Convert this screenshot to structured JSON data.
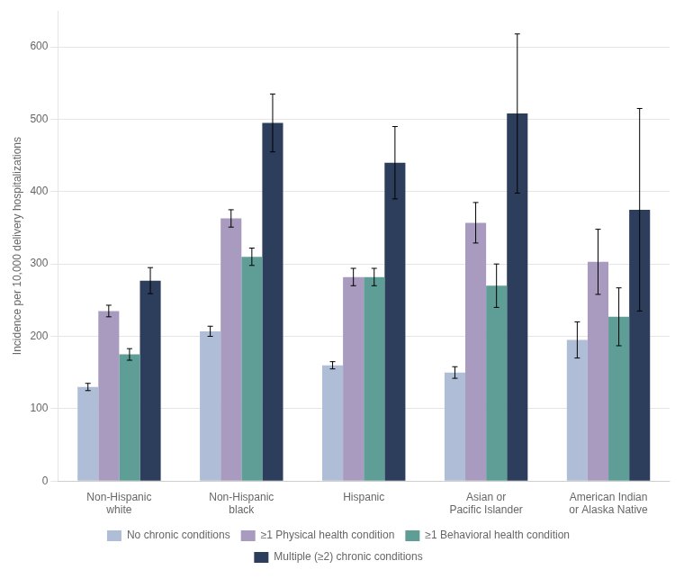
{
  "chart_data": {
    "type": "bar",
    "categories": [
      "Non-Hispanic\nwhite",
      "Non-Hispanic\nblack",
      "Hispanic",
      "Asian or\nPacific Islander",
      "American Indian\nor Alaska Native"
    ],
    "series": [
      {
        "name": "No chronic conditions",
        "color": "#b0bdd6",
        "values": [
          130,
          207,
          160,
          150,
          195
        ],
        "errors": [
          5,
          7,
          5,
          8,
          25
        ]
      },
      {
        "name": "≥1 Physical health condition",
        "color": "#a89bbf",
        "values": [
          235,
          363,
          282,
          357,
          303
        ],
        "errors": [
          8,
          12,
          12,
          28,
          45
        ]
      },
      {
        "name": "≥1 Behavioral health condition",
        "color": "#5f9e96",
        "values": [
          175,
          310,
          282,
          270,
          227
        ],
        "errors": [
          8,
          12,
          12,
          30,
          40
        ]
      },
      {
        "name": "Multiple (≥2) chronic conditions",
        "color": "#2d3d5c",
        "values": [
          277,
          495,
          440,
          508,
          375
        ],
        "errors": [
          18,
          40,
          50,
          110,
          140
        ]
      }
    ],
    "ylabel": "Incidence per 10,000 delivery hospitalizations",
    "ylim": [
      0,
      650
    ],
    "yticks": [
      0,
      100,
      200,
      300,
      400,
      500,
      600
    ],
    "grid": true,
    "legend": "bottom"
  }
}
